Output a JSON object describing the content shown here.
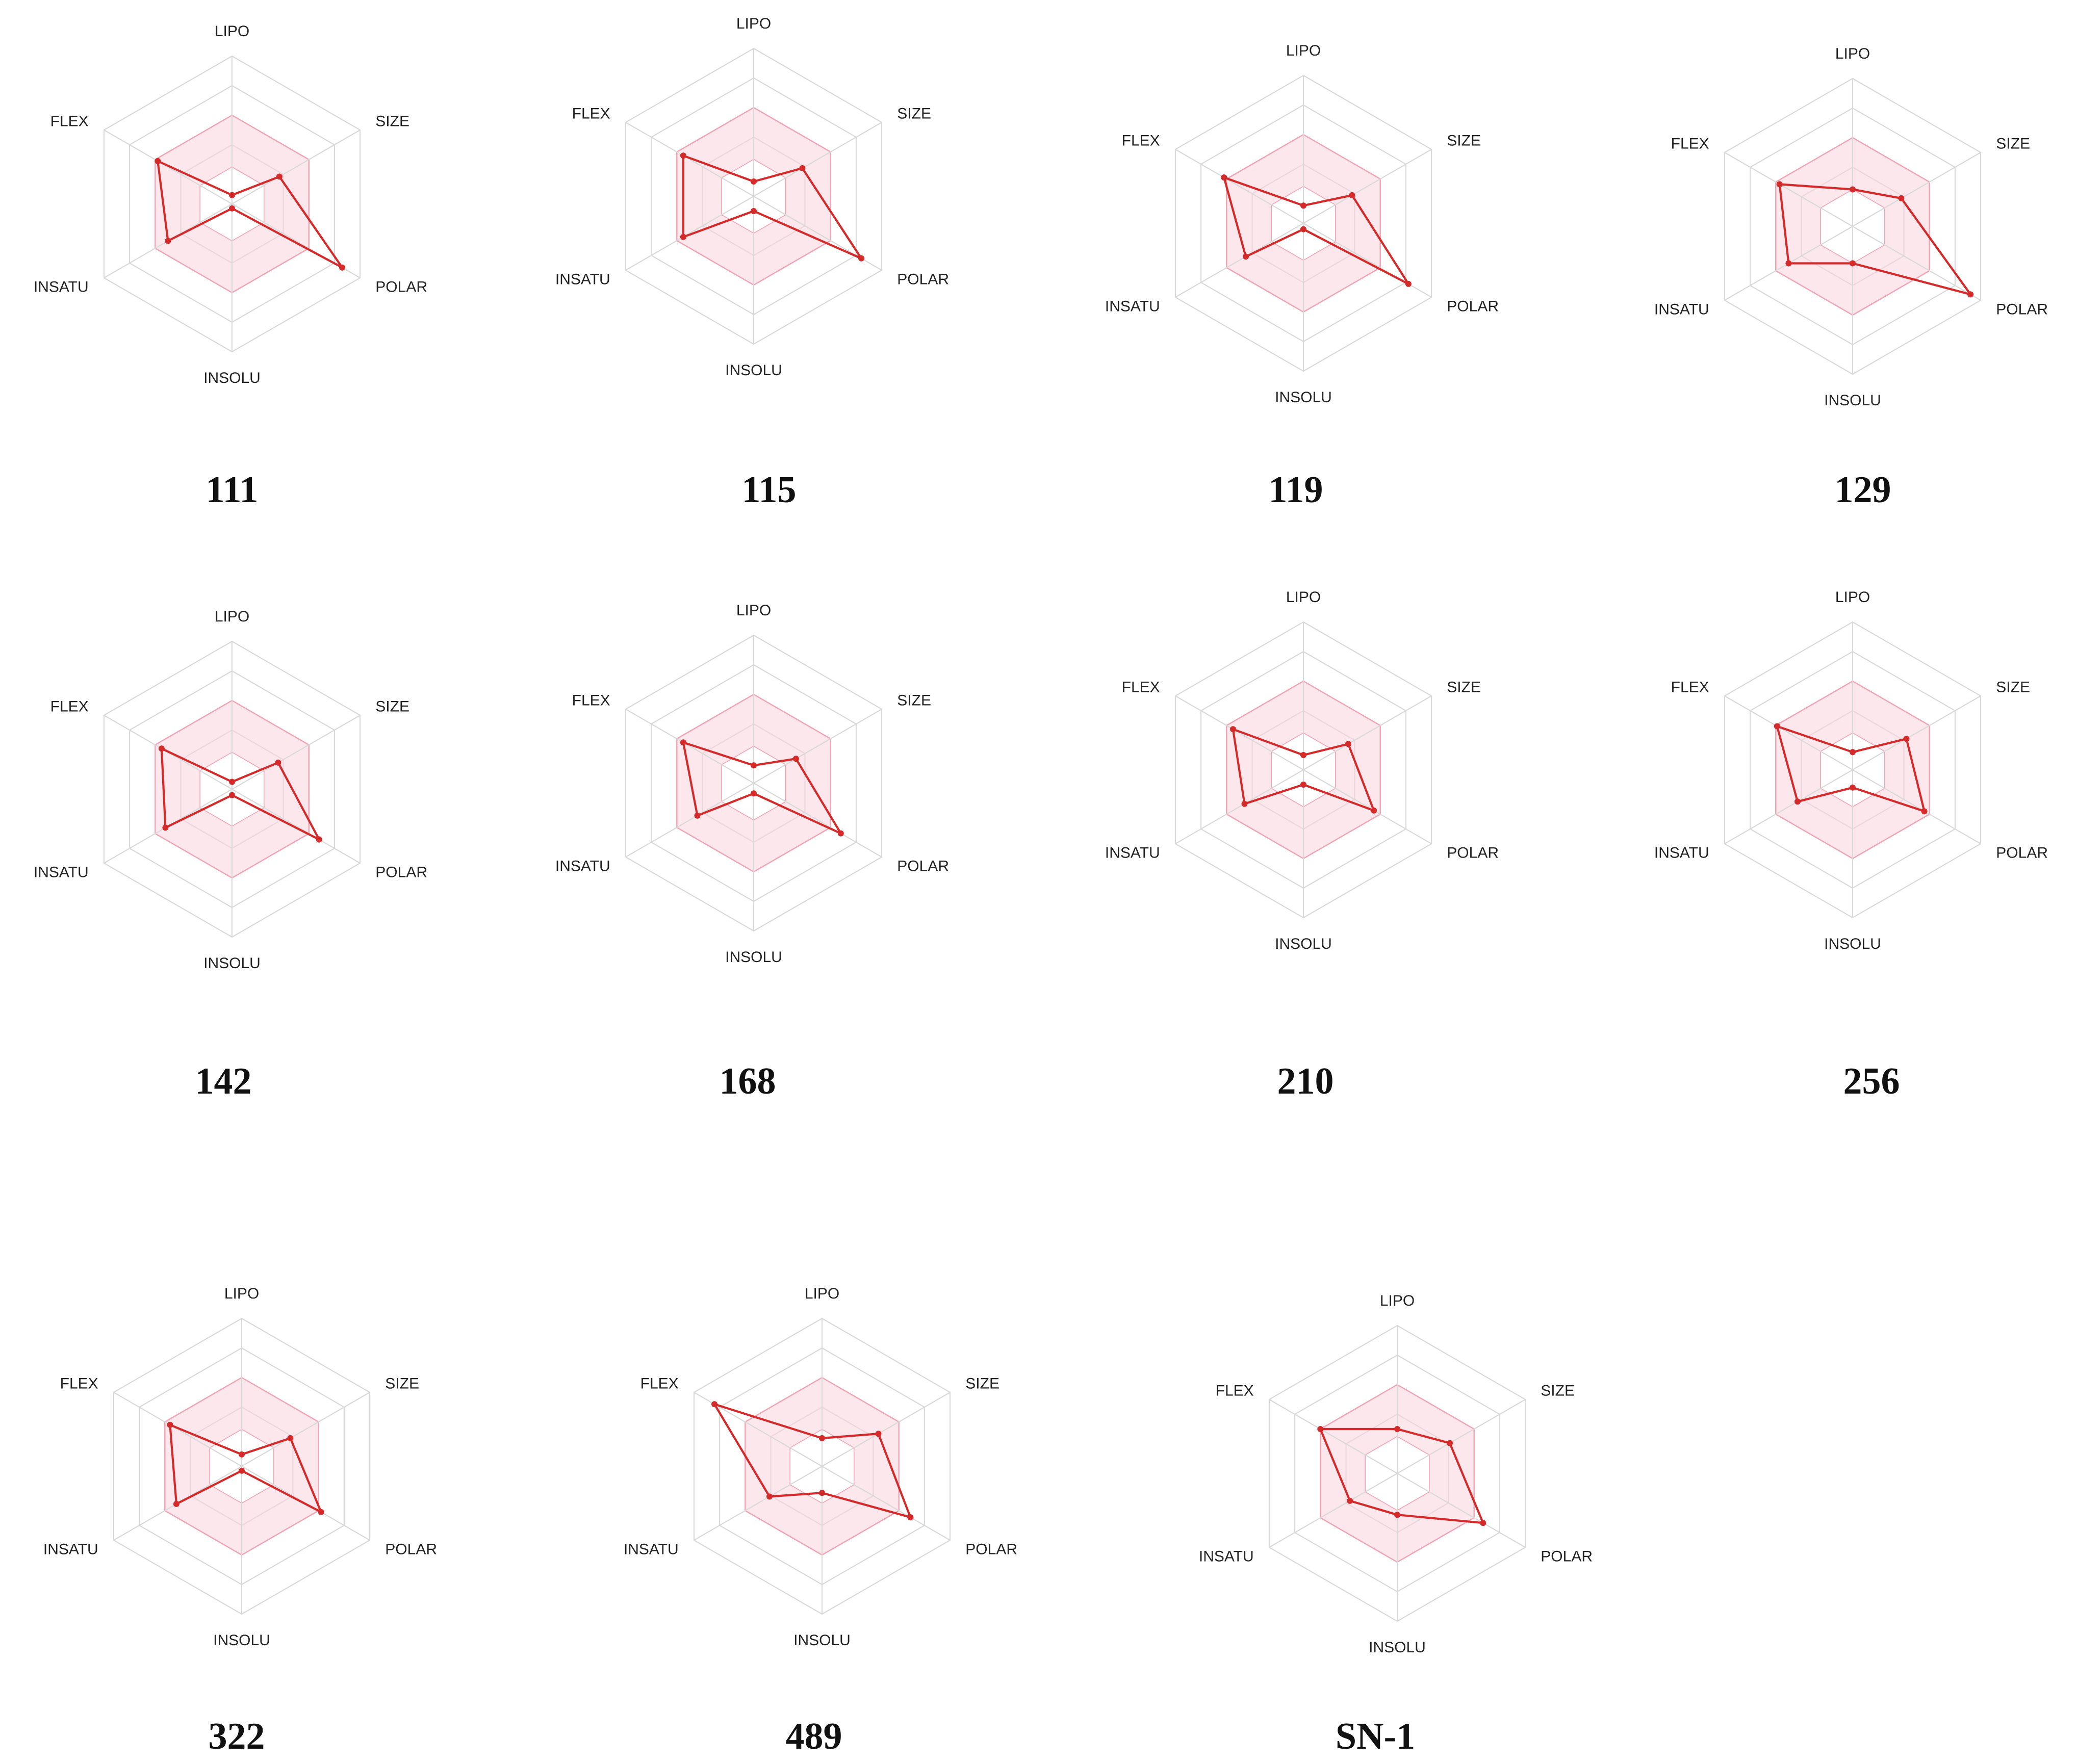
{
  "chart_data": [
    {
      "type": "radar",
      "title": "111",
      "axes": [
        "LIPO",
        "SIZE",
        "POLAR",
        "INSOLU",
        "INSATU",
        "FLEX"
      ],
      "range": [
        0,
        1
      ],
      "optimal_band": [
        0.25,
        0.6
      ],
      "values": [
        0.06,
        0.37,
        0.86,
        0.03,
        0.5,
        0.58
      ]
    },
    {
      "type": "radar",
      "title": "115",
      "axes": [
        "LIPO",
        "SIZE",
        "POLAR",
        "INSOLU",
        "INSATU",
        "FLEX"
      ],
      "range": [
        0,
        1
      ],
      "optimal_band": [
        0.25,
        0.6
      ],
      "values": [
        0.1,
        0.38,
        0.84,
        0.1,
        0.55,
        0.55
      ]
    },
    {
      "type": "radar",
      "title": "119",
      "axes": [
        "LIPO",
        "SIZE",
        "POLAR",
        "INSOLU",
        "INSATU",
        "FLEX"
      ],
      "range": [
        0,
        1
      ],
      "optimal_band": [
        0.25,
        0.6
      ],
      "values": [
        0.12,
        0.38,
        0.82,
        0.04,
        0.45,
        0.62
      ]
    },
    {
      "type": "radar",
      "title": "129",
      "axes": [
        "LIPO",
        "SIZE",
        "POLAR",
        "INSOLU",
        "INSATU",
        "FLEX"
      ],
      "range": [
        0,
        1
      ],
      "optimal_band": [
        0.25,
        0.6
      ],
      "values": [
        0.25,
        0.38,
        0.92,
        0.25,
        0.5,
        0.57
      ]
    },
    {
      "type": "radar",
      "title": "142",
      "axes": [
        "LIPO",
        "SIZE",
        "POLAR",
        "INSOLU",
        "INSATU",
        "FLEX"
      ],
      "range": [
        0,
        1
      ],
      "optimal_band": [
        0.25,
        0.6
      ],
      "values": [
        0.05,
        0.36,
        0.68,
        0.04,
        0.52,
        0.55
      ]
    },
    {
      "type": "radar",
      "title": "168",
      "axes": [
        "LIPO",
        "SIZE",
        "POLAR",
        "INSOLU",
        "INSATU",
        "FLEX"
      ],
      "range": [
        0,
        1
      ],
      "optimal_band": [
        0.25,
        0.6
      ],
      "values": [
        0.12,
        0.33,
        0.68,
        0.07,
        0.44,
        0.55
      ]
    },
    {
      "type": "radar",
      "title": "210",
      "axes": [
        "LIPO",
        "SIZE",
        "POLAR",
        "INSOLU",
        "INSATU",
        "FLEX"
      ],
      "range": [
        0,
        1
      ],
      "optimal_band": [
        0.25,
        0.6
      ],
      "values": [
        0.1,
        0.35,
        0.55,
        0.1,
        0.46,
        0.55
      ]
    },
    {
      "type": "radar",
      "title": "256",
      "axes": [
        "LIPO",
        "SIZE",
        "POLAR",
        "INSOLU",
        "INSATU",
        "FLEX"
      ],
      "range": [
        0,
        1
      ],
      "optimal_band": [
        0.25,
        0.6
      ],
      "values": [
        0.12,
        0.42,
        0.56,
        0.12,
        0.43,
        0.59
      ]
    },
    {
      "type": "radar",
      "title": "322",
      "axes": [
        "LIPO",
        "SIZE",
        "POLAR",
        "INSOLU",
        "INSATU",
        "FLEX"
      ],
      "range": [
        0,
        1
      ],
      "optimal_band": [
        0.25,
        0.6
      ],
      "values": [
        0.08,
        0.38,
        0.62,
        0.03,
        0.51,
        0.56
      ]
    },
    {
      "type": "radar",
      "title": "489",
      "axes": [
        "LIPO",
        "SIZE",
        "POLAR",
        "INSOLU",
        "INSATU",
        "FLEX"
      ],
      "range": [
        0,
        1
      ],
      "optimal_band": [
        0.25,
        0.6
      ],
      "values": [
        0.19,
        0.44,
        0.69,
        0.18,
        0.41,
        0.84
      ]
    },
    {
      "type": "radar",
      "title": "SN-1",
      "axes": [
        "LIPO",
        "SIZE",
        "POLAR",
        "INSOLU",
        "INSATU",
        "FLEX"
      ],
      "range": [
        0,
        1
      ],
      "optimal_band": [
        0.25,
        0.6
      ],
      "values": [
        0.3,
        0.41,
        0.67,
        0.28,
        0.37,
        0.6
      ]
    }
  ]
}
